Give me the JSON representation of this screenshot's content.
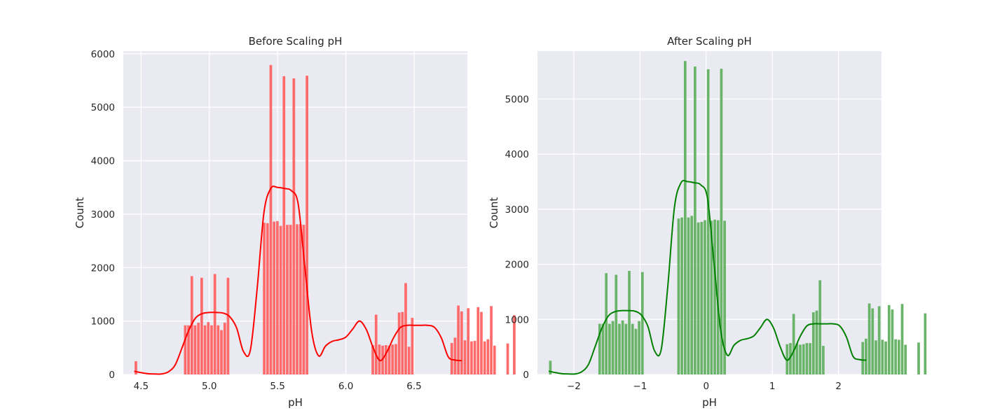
{
  "chart_data": [
    {
      "type": "histogram",
      "title": "Before Scaling pH",
      "xlabel": "pH",
      "ylabel": "Count",
      "xlim": [
        4.37,
        6.89
      ],
      "ylim": [
        0,
        6050
      ],
      "xticks": [
        4.5,
        5.0,
        5.5,
        6.0,
        6.5
      ],
      "xtick_labels": [
        "4.5",
        "5.0",
        "5.5",
        "6.0",
        "6.5"
      ],
      "yticks": [
        0,
        1000,
        2000,
        3000,
        4000,
        5000,
        6000
      ],
      "ytick_labels": [
        "0",
        "1000",
        "2000",
        "3000",
        "4000",
        "5000",
        "6000"
      ],
      "bar_color": "#ff6b6b",
      "kde_color": "#ff0000",
      "bin_start": 4.45,
      "bin_width": 0.0241,
      "values": [
        250,
        0,
        0,
        0,
        0,
        0,
        0,
        0,
        0,
        0,
        0,
        0,
        0,
        0,
        0,
        920,
        920,
        1840,
        920,
        970,
        1810,
        920,
        980,
        920,
        1880,
        920,
        830,
        970,
        1810,
        0,
        0,
        0,
        0,
        0,
        0,
        0,
        0,
        0,
        0,
        2840,
        2830,
        5790,
        2860,
        2870,
        2780,
        5580,
        2800,
        2800,
        5540,
        2810,
        2810,
        2800,
        5590,
        0,
        0,
        0,
        0,
        0,
        0,
        0,
        0,
        0,
        0,
        0,
        0,
        0,
        0,
        0,
        0,
        0,
        0,
        0,
        550,
        1120,
        560,
        540,
        550,
        540,
        560,
        570,
        1160,
        1170,
        1710,
        520,
        1060,
        0,
        0,
        0,
        0,
        0,
        0,
        0,
        0,
        0,
        0,
        0,
        590,
        690,
        1290,
        1180,
        640,
        1240,
        620,
        630,
        1260,
        1170,
        620,
        660,
        1280,
        540,
        0,
        0,
        0,
        580,
        0,
        1110
      ],
      "kde": {
        "x": [
          4.45,
          4.5,
          4.55,
          4.6,
          4.65,
          4.7,
          4.75,
          4.8,
          4.85,
          4.9,
          4.95,
          5.0,
          5.05,
          5.1,
          5.15,
          5.2,
          5.25,
          5.3,
          5.35,
          5.4,
          5.45,
          5.5,
          5.55,
          5.6,
          5.65,
          5.7,
          5.75,
          5.8,
          5.85,
          5.9,
          5.95,
          6.0,
          6.05,
          6.1,
          6.15,
          6.2,
          6.25,
          6.3,
          6.35,
          6.4,
          6.45,
          6.5,
          6.55,
          6.6,
          6.65,
          6.7,
          6.75,
          6.8,
          6.85
        ],
        "y": [
          60,
          35,
          15,
          10,
          10,
          50,
          180,
          500,
          830,
          1060,
          1140,
          1160,
          1160,
          1150,
          1080,
          870,
          430,
          450,
          1600,
          3030,
          3480,
          3500,
          3480,
          3440,
          3200,
          2000,
          800,
          350,
          530,
          620,
          650,
          700,
          850,
          1000,
          840,
          500,
          260,
          420,
          690,
          880,
          920,
          920,
          920,
          920,
          880,
          680,
          330,
          270,
          260
        ]
      }
    },
    {
      "type": "histogram",
      "title": "After Scaling pH",
      "xlabel": "pH",
      "ylabel": "Count",
      "xlim": [
        -2.55,
        2.65
      ],
      "ylim": [
        0,
        5870
      ],
      "xticks": [
        -2,
        -1,
        0,
        1,
        2
      ],
      "xtick_labels": [
        "−2",
        "−1",
        "0",
        "1",
        "2"
      ],
      "yticks": [
        0,
        1000,
        2000,
        3000,
        4000,
        5000
      ],
      "ytick_labels": [
        "0",
        "1000",
        "2000",
        "3000",
        "4000",
        "5000"
      ],
      "bar_color": "#6ab46a",
      "kde_color": "#008000",
      "bin_start": -2.38,
      "bin_width": 0.0497,
      "values": [
        250,
        0,
        0,
        0,
        0,
        0,
        0,
        0,
        0,
        0,
        0,
        0,
        0,
        0,
        0,
        920,
        920,
        1840,
        920,
        970,
        1810,
        920,
        980,
        920,
        1880,
        920,
        830,
        970,
        1860,
        0,
        0,
        0,
        0,
        0,
        0,
        0,
        0,
        0,
        0,
        2830,
        2850,
        5690,
        2850,
        2880,
        5590,
        2760,
        2770,
        2800,
        5540,
        2790,
        2810,
        2800,
        5550,
        2790,
        0,
        0,
        0,
        0,
        0,
        0,
        0,
        0,
        0,
        0,
        0,
        0,
        0,
        0,
        0,
        0,
        0,
        0,
        550,
        570,
        1100,
        560,
        540,
        550,
        570,
        570,
        1130,
        1160,
        1710,
        520,
        0,
        0,
        0,
        0,
        0,
        0,
        0,
        0,
        0,
        0,
        0,
        590,
        650,
        1290,
        1200,
        620,
        1240,
        630,
        600,
        1260,
        1180,
        640,
        630,
        1280,
        540,
        0,
        0,
        0,
        580,
        0,
        1110
      ],
      "kde": {
        "x": [
          -2.38,
          -2.28,
          -2.18,
          -2.08,
          -1.98,
          -1.88,
          -1.78,
          -1.68,
          -1.58,
          -1.48,
          -1.38,
          -1.28,
          -1.18,
          -1.08,
          -0.98,
          -0.88,
          -0.78,
          -0.68,
          -0.58,
          -0.48,
          -0.38,
          -0.28,
          -0.18,
          -0.08,
          0.02,
          0.12,
          0.22,
          0.32,
          0.42,
          0.52,
          0.62,
          0.72,
          0.82,
          0.92,
          1.02,
          1.12,
          1.22,
          1.32,
          1.42,
          1.52,
          1.62,
          1.72,
          1.82,
          1.92,
          2.02,
          2.12,
          2.22,
          2.32,
          2.42
        ],
        "y": [
          60,
          35,
          15,
          10,
          10,
          50,
          180,
          500,
          830,
          1060,
          1140,
          1160,
          1160,
          1150,
          1080,
          870,
          430,
          450,
          1600,
          3030,
          3480,
          3500,
          3480,
          3440,
          3200,
          2000,
          800,
          350,
          530,
          620,
          650,
          700,
          850,
          1000,
          840,
          500,
          260,
          420,
          690,
          880,
          920,
          920,
          920,
          920,
          880,
          680,
          330,
          270,
          260
        ]
      }
    }
  ]
}
